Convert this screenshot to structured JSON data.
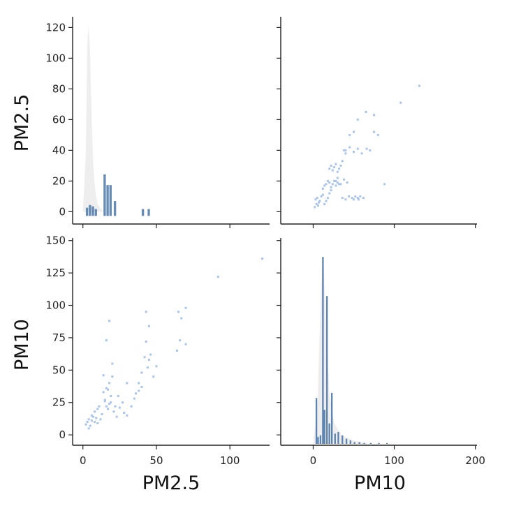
{
  "chart_data": {
    "type": "scatter",
    "kind": "pairplot",
    "variables": [
      "PM2.5",
      "PM10"
    ],
    "axis_titles": {
      "x": [
        "PM2.5",
        "PM10"
      ],
      "y": [
        "PM2.5",
        "PM10"
      ]
    },
    "ticks": {
      "pm25_y": [
        0,
        20,
        40,
        60,
        80,
        100,
        120
      ],
      "pm10_y": [
        0,
        25,
        50,
        75,
        100,
        125,
        150
      ],
      "pm25_x": [
        0,
        50,
        100
      ],
      "pm10_x": [
        0,
        100,
        200
      ]
    },
    "ranges": {
      "pm25_y": [
        -8,
        127
      ],
      "pm10_y": [
        -8,
        152
      ],
      "pm25_x": [
        -7,
        127
      ],
      "pm10_x": [
        -40,
        202
      ]
    },
    "colors": {
      "points": "#a9c4ec",
      "bars": "#4c78a8",
      "hist_fill": "#eeeeee"
    },
    "hist_pm25": {
      "bins": [
        [
          2,
          3
        ],
        [
          4,
          5
        ],
        [
          6,
          4
        ],
        [
          8,
          2
        ],
        [
          14,
          28
        ],
        [
          16,
          20
        ],
        [
          18,
          20
        ],
        [
          21,
          8
        ],
        [
          40,
          2
        ],
        [
          44,
          2
        ]
      ],
      "max_count": 138
    },
    "hist_pm10": {
      "bins": [
        [
          3,
          27
        ],
        [
          5,
          4
        ],
        [
          8,
          5
        ],
        [
          11,
          110
        ],
        [
          13,
          20
        ],
        [
          16,
          87
        ],
        [
          19,
          12
        ],
        [
          22,
          30
        ],
        [
          26,
          6
        ],
        [
          30,
          7
        ],
        [
          35,
          5
        ],
        [
          40,
          3
        ],
        [
          45,
          2
        ],
        [
          50,
          1
        ],
        [
          56,
          1
        ],
        [
          62,
          0.5
        ],
        [
          70,
          0.5
        ],
        [
          80,
          0.5
        ],
        [
          90,
          0.5
        ]
      ],
      "max_count": 115
    },
    "scatter_pm25_pm10": {
      "pm25": [
        2,
        3,
        4,
        5,
        6,
        7,
        8,
        9,
        10,
        12,
        4,
        6,
        8,
        10,
        11,
        13,
        15,
        16,
        17,
        18,
        19,
        14,
        16,
        18,
        20,
        22,
        15,
        17,
        19,
        21,
        23,
        25,
        28,
        30,
        35,
        38,
        40,
        42,
        44,
        45,
        46,
        48,
        38,
        40,
        43,
        45,
        50,
        65,
        67,
        70,
        70,
        64,
        66,
        43,
        92,
        122,
        16,
        18,
        14,
        20,
        24,
        27,
        33,
        36,
        30
      ],
      "pm10": [
        8,
        10,
        12,
        7,
        11,
        14,
        10,
        13,
        9,
        12,
        5,
        15,
        18,
        20,
        22,
        16,
        26,
        22,
        35,
        24,
        30,
        33,
        36,
        40,
        45,
        22,
        27,
        20,
        25,
        18,
        14,
        21,
        17,
        15,
        28,
        40,
        48,
        60,
        52,
        58,
        62,
        45,
        34,
        37,
        72,
        84,
        53,
        95,
        90,
        98,
        70,
        65,
        73,
        95,
        122,
        136,
        73,
        88,
        46,
        55,
        30,
        25,
        22,
        32,
        40
      ]
    },
    "scatter_pm10_pm25": {
      "pm10": [
        2,
        4,
        6,
        8,
        3,
        5,
        7,
        10,
        12,
        14,
        16,
        18,
        20,
        22,
        12,
        14,
        16,
        18,
        20,
        22,
        24,
        26,
        28,
        30,
        32,
        20,
        22,
        24,
        26,
        28,
        30,
        32,
        34,
        36,
        38,
        40,
        28,
        30,
        34,
        38,
        42,
        36,
        40,
        44,
        48,
        50,
        52,
        55,
        56,
        58,
        62,
        40,
        45,
        50,
        55,
        60,
        66,
        70,
        75,
        80,
        55,
        65,
        75,
        88,
        108,
        131,
        45,
        50
      ],
      "pm25": [
        3,
        5,
        4,
        7,
        8,
        9,
        6,
        10,
        11,
        5,
        7,
        9,
        12,
        14,
        15,
        17,
        18,
        20,
        19,
        16,
        18,
        20,
        17,
        19,
        18,
        28,
        30,
        27,
        29,
        31,
        26,
        28,
        30,
        33,
        40,
        38,
        20,
        22,
        18,
        21,
        19,
        9,
        8,
        10,
        9,
        8,
        10,
        9,
        8,
        10,
        9,
        40,
        42,
        39,
        41,
        38,
        41,
        40,
        52,
        50,
        60,
        65,
        63,
        18,
        71,
        82,
        50,
        52
      ]
    }
  }
}
